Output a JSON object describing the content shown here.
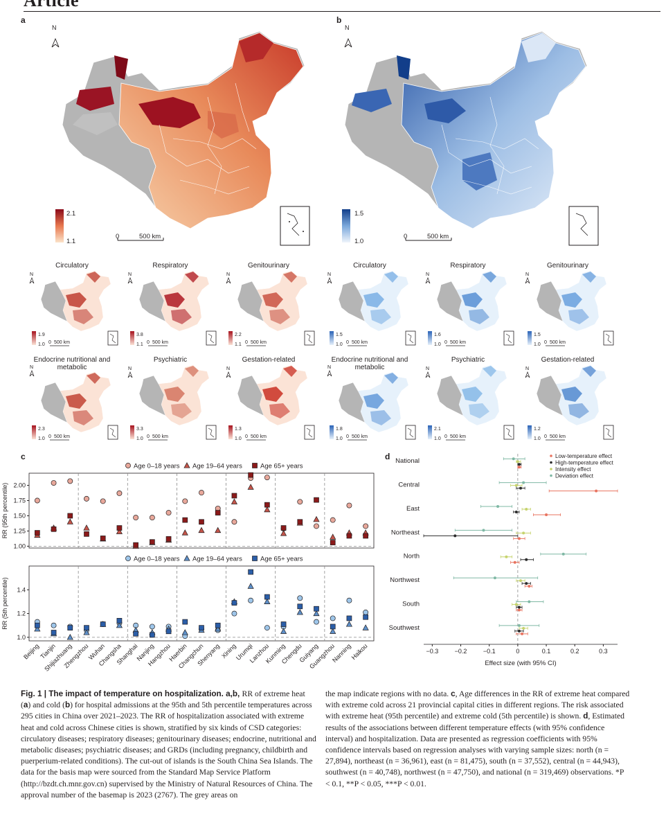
{
  "header": {
    "journal_section": "Article"
  },
  "panels": {
    "a": {
      "label": "a",
      "north": "N",
      "legend_max": "2.1",
      "legend_min": "1.1",
      "scale_zero": "0",
      "scale_len": "500 km",
      "colors": {
        "high": "#8b0a1a",
        "low": "#fbe3c9",
        "nodata": "#b5b5b5"
      }
    },
    "b": {
      "label": "b",
      "north": "N",
      "legend_max": "1.5",
      "legend_min": "1.0",
      "scale_zero": "0",
      "scale_len": "500 km",
      "colors": {
        "high": "#123e8a",
        "low": "#e8f1fb",
        "nodata": "#b5b5b5"
      }
    },
    "heat_small_maps": [
      {
        "title": "Circulatory",
        "max": "1.9",
        "min": "1.0"
      },
      {
        "title": "Respiratory",
        "max": "3.8",
        "min": "1.1"
      },
      {
        "title": "Genitourinary",
        "max": "2.2",
        "min": "1.1"
      },
      {
        "title": "Endocrine nutritional and metabolic",
        "max": "2.3",
        "min": "1.0"
      },
      {
        "title": "Psychiatric",
        "max": "3.3",
        "min": "1.0"
      },
      {
        "title": "Gestation-related",
        "max": "1.3",
        "min": "1.0"
      }
    ],
    "cold_small_maps": [
      {
        "title": "Circulatory",
        "max": "1.5",
        "min": "1.0"
      },
      {
        "title": "Respiratory",
        "max": "1.6",
        "min": "1.0"
      },
      {
        "title": "Genitourinary",
        "max": "1.5",
        "min": "1.0"
      },
      {
        "title": "Endocrine nutritional and metabolic",
        "max": "1.8",
        "min": "1.0"
      },
      {
        "title": "Psychiatric",
        "max": "2.1",
        "min": "1.0"
      },
      {
        "title": "Gestation-related",
        "max": "1.2",
        "min": "1.0"
      }
    ],
    "small_scale": {
      "zero": "0",
      "len": "500 km",
      "north": "N"
    }
  },
  "chart_data": [
    {
      "type": "scatter",
      "panel": "c (top)",
      "ylabel": "RR (95th percentile)",
      "ylim": [
        0.97,
        2.2
      ],
      "yticks": [
        "1.00",
        "1.25",
        "1.50",
        "1.75",
        "2.00"
      ],
      "categories": [
        "Beijing",
        "Tianjin",
        "Shijiazhuang",
        "Zhengzhou",
        "Wuhan",
        "Changsha",
        "Shanghai",
        "Nanjing",
        "Hangzhou",
        "Haerbin",
        "Changchun",
        "Shenyang",
        "Xining",
        "Urumqi",
        "Lanzhou",
        "Kunming",
        "Chengdu",
        "Guiyang",
        "Guangzhou",
        "Nanning",
        "Haikou"
      ],
      "series": [
        {
          "name": "Age 0–18 years",
          "marker": "circle",
          "values": [
            1.75,
            2.04,
            2.07,
            1.78,
            1.74,
            1.87,
            1.47,
            1.47,
            1.55,
            1.74,
            1.88,
            1.62,
            1.4,
            2.12,
            2.13,
            1.29,
            1.73,
            1.33,
            1.43,
            1.67,
            1.33
          ]
        },
        {
          "name": "Age 19–64 years",
          "marker": "triangle",
          "values": [
            1.18,
            1.3,
            1.4,
            1.3,
            1.12,
            1.24,
            1.0,
            1.06,
            1.1,
            1.22,
            1.26,
            1.26,
            1.73,
            1.97,
            1.6,
            1.21,
            1.38,
            1.44,
            1.15,
            1.22,
            1.22
          ]
        },
        {
          "name": "Age 65+ years",
          "marker": "square",
          "values": [
            1.22,
            1.28,
            1.5,
            1.2,
            1.13,
            1.3,
            1.02,
            1.07,
            1.12,
            1.43,
            1.4,
            1.55,
            1.83,
            2.17,
            1.68,
            1.3,
            1.4,
            1.76,
            1.06,
            1.17,
            1.17
          ]
        }
      ]
    },
    {
      "type": "scatter",
      "panel": "c (bottom)",
      "ylabel": "RR (5th percentile)",
      "ylim": [
        0.97,
        1.6
      ],
      "yticks": [
        "1.0",
        "1.2",
        "1.4"
      ],
      "categories": [
        "Beijing",
        "Tianjin",
        "Shijiazhuang",
        "Zhengzhou",
        "Wuhan",
        "Changsha",
        "Shanghai",
        "Nanjing",
        "Hangzhou",
        "Haerbin",
        "Changchun",
        "Shenyang",
        "Xining",
        "Urumqi",
        "Lanzhou",
        "Kunming",
        "Chengdu",
        "Guiyang",
        "Guangzhou",
        "Nanning",
        "Haikou"
      ],
      "series": [
        {
          "name": "Age 0–18 years",
          "marker": "circle",
          "values": [
            1.13,
            1.1,
            1.09,
            1.06,
            1.11,
            1.12,
            1.1,
            1.09,
            1.09,
            1.01,
            1.07,
            1.06,
            1.2,
            1.31,
            1.08,
            1.09,
            1.33,
            1.13,
            1.16,
            1.31,
            1.21
          ]
        },
        {
          "name": "Age 19–64 years",
          "marker": "triangle",
          "values": [
            1.07,
            1.03,
            1.0,
            1.04,
            1.11,
            1.1,
            1.06,
            1.04,
            1.07,
            1.04,
            1.06,
            1.07,
            1.3,
            1.43,
            1.3,
            1.05,
            1.21,
            1.2,
            1.05,
            1.11,
            1.08
          ]
        },
        {
          "name": "Age 65+ years",
          "marker": "square",
          "values": [
            1.1,
            1.04,
            1.08,
            1.08,
            1.11,
            1.14,
            1.03,
            1.02,
            1.05,
            1.13,
            1.08,
            1.1,
            1.29,
            1.55,
            1.34,
            1.11,
            1.26,
            1.24,
            1.09,
            1.16,
            1.17
          ]
        }
      ]
    },
    {
      "type": "scatter",
      "panel": "d",
      "xlabel": "Effect size (with 95% CI)",
      "xlim": [
        -0.33,
        0.35
      ],
      "xticks": [
        "−0.3",
        "−0.2",
        "−0.1",
        "0",
        "0.1",
        "0.2",
        "0.3"
      ],
      "categories": [
        "National",
        "Central",
        "East",
        "Northeast",
        "North",
        "Northwest",
        "South",
        "Southwest"
      ],
      "series": [
        {
          "name": "Low-temperature effect",
          "color": "#e8735f",
          "values": [
            0.005,
            0.275,
            0.1,
            0.005,
            -0.01,
            0.04,
            0.005,
            0.015
          ],
          "ci_low": [
            0.0,
            0.11,
            0.055,
            -0.015,
            -0.025,
            0.025,
            -0.005,
            -0.005
          ],
          "ci_high": [
            0.012,
            0.35,
            0.15,
            0.025,
            0.005,
            0.05,
            0.015,
            0.035
          ]
        },
        {
          "name": "High-temperature effect",
          "color": "#2b2b2b",
          "values": [
            0.005,
            0.01,
            -0.005,
            -0.22,
            0.03,
            0.03,
            0.005,
            0.005
          ],
          "ci_low": [
            0.0,
            -0.005,
            -0.015,
            -0.33,
            0.01,
            0.015,
            -0.005,
            -0.01
          ],
          "ci_high": [
            0.012,
            0.025,
            0.005,
            0.0,
            0.055,
            0.045,
            0.015,
            0.02
          ]
        },
        {
          "name": "Intensity effect",
          "color": "#c6d36d",
          "values": [
            0.0,
            -0.005,
            0.03,
            0.02,
            -0.04,
            0.01,
            -0.005,
            0.02
          ],
          "ci_low": [
            -0.005,
            -0.025,
            0.015,
            -0.005,
            -0.06,
            -0.005,
            -0.02,
            0.005
          ],
          "ci_high": [
            0.01,
            0.015,
            0.045,
            0.045,
            -0.02,
            0.025,
            0.01,
            0.035
          ]
        },
        {
          "name": "Deviation effect",
          "color": "#7fb8a4",
          "values": [
            -0.015,
            0.02,
            -0.07,
            -0.12,
            0.16,
            -0.08,
            0.04,
            0.005
          ],
          "ci_low": [
            -0.05,
            -0.065,
            -0.13,
            -0.22,
            0.08,
            -0.225,
            -0.005,
            -0.065
          ],
          "ci_high": [
            0.025,
            0.1,
            -0.02,
            -0.02,
            0.24,
            0.07,
            0.09,
            0.075
          ]
        }
      ]
    }
  ],
  "panel_labels": {
    "c": "c",
    "d": "d"
  },
  "caption": {
    "col1": [
      {
        "b": "Fig. 1 | The impact of temperature on hospitalization. a,b, ",
        "t": "RR of extreme heat ("
      },
      {
        "b": "a",
        "t": ") and cold ("
      },
      {
        "b": "b",
        "t": ") for hospital admissions at the 95th and 5th percentile temperatures across 295 cities in China over 2021–2023. The RR of hospitalization associated with extreme heat and cold across Chinese cities is shown, stratified by six kinds of CSD categories: circulatory diseases; respiratory diseases; genitourinary diseases; endocrine, nutritional and metabolic diseases; psychiatric diseases; and GRDs (including pregnancy, childbirth and puerperium-related conditions). The cut-out of islands is the South China Sea Islands. The data for the basis map were sourced from the Standard Map Service Platform (http://bzdt.ch.mnr.gov.cn) supervised by the Ministry of Natural Resources of China. The approval number of the basemap is 2023 (2767). The grey areas on"
      }
    ],
    "col2": [
      {
        "b": "",
        "t": "the map indicate regions with no data. "
      },
      {
        "b": "c",
        "t": ", Age differences in the RR of extreme heat compared with extreme cold across 21 provincial capital cities in different regions. The risk associated with extreme heat (95th percentile) and extreme cold (5th percentile) is shown. "
      },
      {
        "b": "d",
        "t": ", Estimated results of the associations between different temperature effects (with 95% confidence interval) and hospitalization. Data are presented as regression coefficients with 95% confidence intervals based on regression analyses with varying sample sizes: north (n = 27,894), northeast (n = 36,961), east (n = 81,475), south (n = 37,552), central (n = 44,943), southwest (n = 40,748), northwest (n = 47,750), and national (n = 319,469) observations. *P < 0.1, **P < 0.05, ***P < 0.01."
      }
    ]
  }
}
